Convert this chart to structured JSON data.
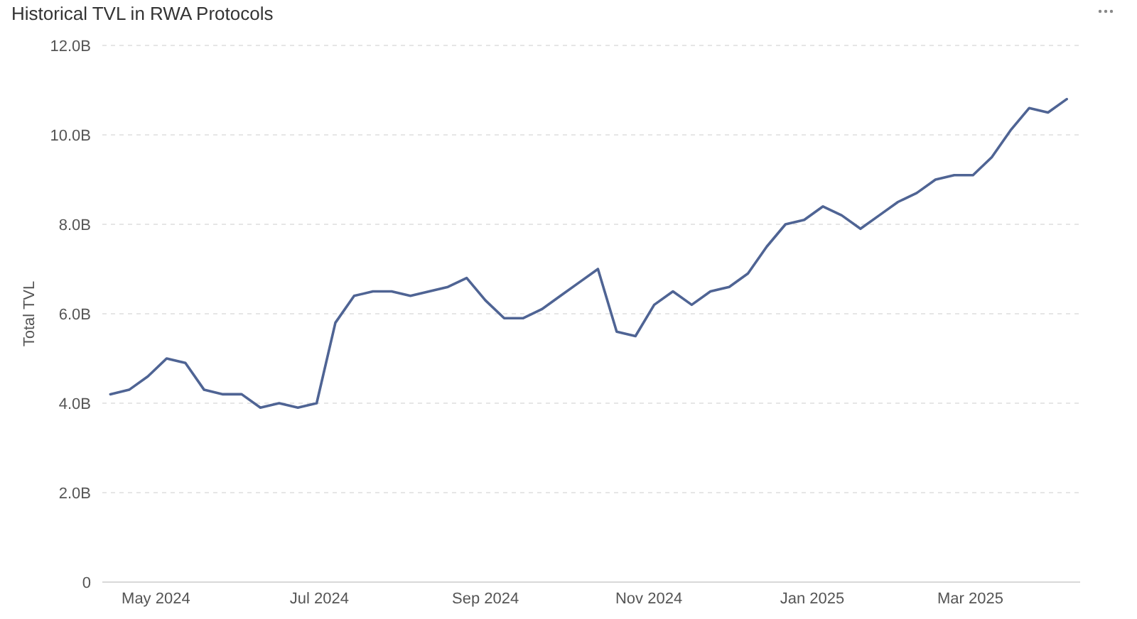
{
  "chart_data": {
    "type": "line",
    "title": "Historical TVL in RWA Protocols",
    "ylabel": "Total TVL",
    "x": [
      "2024-04-14",
      "2024-04-21",
      "2024-04-28",
      "2024-05-05",
      "2024-05-12",
      "2024-05-19",
      "2024-05-26",
      "2024-06-02",
      "2024-06-09",
      "2024-06-16",
      "2024-06-23",
      "2024-06-30",
      "2024-07-07",
      "2024-07-14",
      "2024-07-21",
      "2024-07-28",
      "2024-08-04",
      "2024-08-11",
      "2024-08-18",
      "2024-08-25",
      "2024-09-01",
      "2024-09-08",
      "2024-09-15",
      "2024-09-22",
      "2024-09-29",
      "2024-10-06",
      "2024-10-13",
      "2024-10-20",
      "2024-10-27",
      "2024-11-03",
      "2024-11-10",
      "2024-11-17",
      "2024-11-24",
      "2024-12-01",
      "2024-12-08",
      "2024-12-15",
      "2024-12-22",
      "2024-12-29",
      "2025-01-05",
      "2025-01-12",
      "2025-01-19",
      "2025-01-26",
      "2025-02-02",
      "2025-02-09",
      "2025-02-16",
      "2025-02-23",
      "2025-03-02",
      "2025-03-09",
      "2025-03-16",
      "2025-03-23",
      "2025-03-30",
      "2025-04-06"
    ],
    "series": [
      {
        "color": "#4f6494",
        "values": [
          4.2,
          4.3,
          4.6,
          5.0,
          4.9,
          4.3,
          4.2,
          4.2,
          3.9,
          4.0,
          3.9,
          4.0,
          5.8,
          6.4,
          6.5,
          6.5,
          6.4,
          6.5,
          6.6,
          6.8,
          6.3,
          5.9,
          5.9,
          6.1,
          6.4,
          6.7,
          7.0,
          5.6,
          5.5,
          6.2,
          6.5,
          6.2,
          6.5,
          6.6,
          6.9,
          7.5,
          8.0,
          8.1,
          8.4,
          8.2,
          7.9,
          8.2,
          8.5,
          8.7,
          9.0,
          9.1,
          9.1,
          9.5,
          10.1,
          10.6,
          10.5,
          10.8
        ]
      }
    ],
    "xlim": [
      "2024-04-11",
      "2025-04-11"
    ],
    "xticks": [
      {
        "value": "2024-05-01",
        "label": "May 2024"
      },
      {
        "value": "2024-07-01",
        "label": "Jul 2024"
      },
      {
        "value": "2024-09-01",
        "label": "Sep 2024"
      },
      {
        "value": "2024-11-01",
        "label": "Nov 2024"
      },
      {
        "value": "2025-01-01",
        "label": "Jan 2025"
      },
      {
        "value": "2025-03-01",
        "label": "Mar 2025"
      }
    ],
    "ylim": [
      0,
      12
    ],
    "yticks": [
      0,
      {
        "value": 2,
        "label": "2.0B"
      },
      {
        "value": 4,
        "label": "4.0B"
      },
      {
        "value": 6,
        "label": "6.0B"
      },
      {
        "value": 8,
        "label": "8.0B"
      },
      {
        "value": 10,
        "label": "10.0B"
      },
      {
        "value": 12,
        "label": "12.0B"
      }
    ],
    "grid": "y",
    "marker": "none",
    "line_style": "solid"
  }
}
